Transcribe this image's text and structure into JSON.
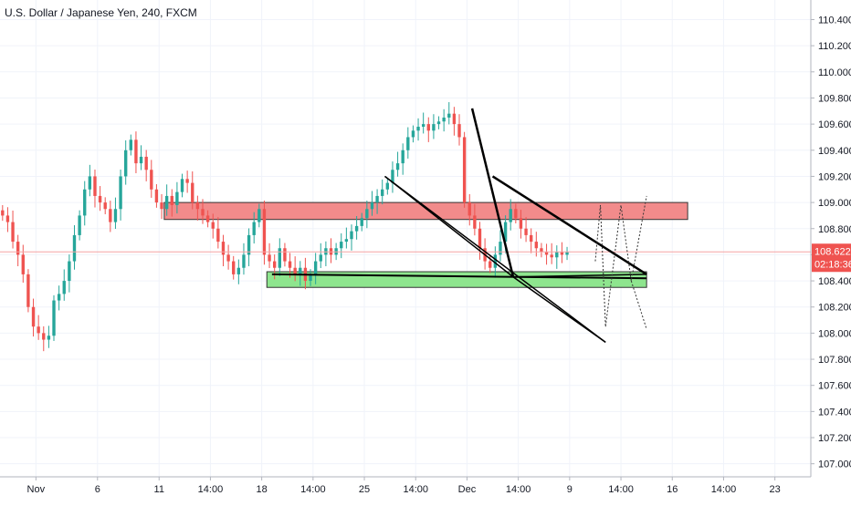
{
  "header": {
    "title": "U.S. Dollar / Japanese Yen, 240, FXCM"
  },
  "price_badge": {
    "price": "108.622",
    "countdown": "02:18:36"
  },
  "colors": {
    "up": "#26a69a",
    "down": "#ef5350",
    "grid": "#f0f3fa",
    "axis": "#b2b5be",
    "resistance_fill": "#f28b8b",
    "support_fill": "#8ee58e",
    "price_line": "#f5a3a3",
    "badge_bg": "#ef5350",
    "drawing": "#000000"
  },
  "chart_data": {
    "type": "candlestick",
    "symbol": "USDJPY",
    "timeframe": "240",
    "ylim": [
      106.9,
      110.55
    ],
    "y_ticks": [
      "110.400",
      "110.200",
      "110.000",
      "109.800",
      "109.600",
      "109.400",
      "109.200",
      "109.000",
      "108.800",
      "108.600",
      "108.400",
      "108.200",
      "108.000",
      "107.800",
      "107.600",
      "107.400",
      "107.200",
      "107.000"
    ],
    "x_ticks": [
      "Nov",
      "6",
      "11",
      "14:00",
      "18",
      "14:00",
      "25",
      "14:00",
      "Dec",
      "14:00",
      "9",
      "14:00",
      "16",
      "14:00",
      "23"
    ],
    "x_tick_index": [
      7,
      19,
      31,
      41,
      51,
      61,
      71,
      81,
      91,
      101,
      111,
      121,
      131,
      141,
      151
    ],
    "visible_last_index": 158,
    "current_price": 108.622,
    "closes": [
      108.9,
      108.85,
      108.7,
      108.6,
      108.45,
      108.2,
      108.05,
      108.0,
      107.95,
      107.98,
      108.25,
      108.3,
      108.4,
      108.55,
      108.75,
      108.9,
      109.1,
      109.2,
      109.05,
      109.0,
      108.95,
      108.85,
      108.95,
      109.2,
      109.4,
      109.48,
      109.3,
      109.35,
      109.25,
      109.1,
      109.0,
      108.95,
      109.05,
      108.98,
      109.08,
      109.18,
      109.15,
      109.0,
      108.95,
      108.9,
      108.85,
      108.8,
      108.7,
      108.6,
      108.55,
      108.45,
      108.5,
      108.6,
      108.75,
      108.85,
      108.95,
      108.6,
      108.55,
      108.5,
      108.65,
      108.55,
      108.5,
      108.45,
      108.5,
      108.4,
      108.45,
      108.55,
      108.6,
      108.65,
      108.6,
      108.65,
      108.7,
      108.72,
      108.78,
      108.82,
      108.88,
      108.95,
      109.0,
      109.05,
      109.1,
      109.15,
      109.25,
      109.3,
      109.4,
      109.5,
      109.55,
      109.58,
      109.6,
      109.55,
      109.6,
      109.62,
      109.65,
      109.68,
      109.6,
      109.5,
      109.0,
      108.9,
      108.8,
      108.65,
      108.55,
      108.5,
      108.6,
      108.7,
      108.85,
      108.95,
      108.88,
      108.8,
      108.75,
      108.7,
      108.65,
      108.62,
      108.6,
      108.58,
      108.62,
      108.6,
      108.62
    ],
    "opens_offset": "derived from previous close",
    "zones": [
      {
        "kind": "resistance",
        "y_top": 109.0,
        "y_bottom": 108.87,
        "x_start_index": 32,
        "x_end_index": 134
      },
      {
        "kind": "support",
        "y_top": 108.47,
        "y_bottom": 108.35,
        "x_start_index": 52,
        "x_end_index": 126
      }
    ],
    "lines": [
      {
        "name": "support-trendline",
        "points": [
          [
            53,
            108.45
          ],
          [
            126,
            108.42
          ]
        ],
        "width": 2
      },
      {
        "name": "channel-upper",
        "points": [
          [
            75,
            109.2
          ],
          [
            118,
            107.93
          ]
        ],
        "width": 1.5
      },
      {
        "name": "channel-lower",
        "points": [
          [
            75,
            109.2
          ],
          [
            100,
            108.43
          ],
          [
            118,
            107.93
          ]
        ],
        "width": 1.5
      },
      {
        "name": "drop-line-a",
        "points": [
          [
            92,
            109.72
          ],
          [
            100,
            108.43
          ]
        ],
        "width": 2.5
      },
      {
        "name": "triangle-top",
        "points": [
          [
            96,
            109.2
          ],
          [
            126,
            108.45
          ]
        ],
        "width": 2.5
      },
      {
        "name": "triangle-bottom",
        "points": [
          [
            100,
            108.43
          ],
          [
            126,
            108.45
          ]
        ],
        "width": 1.5
      }
    ],
    "projections": [
      {
        "points": [
          [
            116,
            108.55
          ],
          [
            117,
            108.98
          ],
          [
            118,
            108.05
          ]
        ]
      },
      {
        "points": [
          [
            118,
            108.05
          ],
          [
            121,
            108.98
          ],
          [
            123,
            108.4
          ],
          [
            126,
            109.05
          ]
        ]
      },
      {
        "points": [
          [
            123,
            108.4
          ],
          [
            126,
            108.03
          ]
        ]
      }
    ]
  }
}
